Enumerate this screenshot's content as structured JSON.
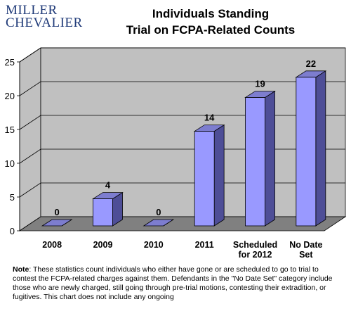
{
  "logo": {
    "line1": "MILLER",
    "line2": "CHEVALIER"
  },
  "note": {
    "label": "Note",
    "text": ": These statistics count individuals who either have gone or are scheduled to go to trial to contest the FCPA-related charges against them. Defendants in the \"No Date Set\" category include those who are newly charged, still going through pre-trial motions, contesting their extradition, or fugitives. This chart does not include any ongoing"
  },
  "colors": {
    "bar_front": "#9999ff",
    "bar_top": "#7d7dcf",
    "bar_side": "#4e4e97",
    "wall": "#c0c0c0",
    "floor": "#808080"
  },
  "chart_data": {
    "type": "bar",
    "title_line1": "Individuals Standing",
    "title_line2": "Trial on FCPA-Related Counts",
    "categories": [
      [
        "2008"
      ],
      [
        "2009"
      ],
      [
        "2010"
      ],
      [
        "2011"
      ],
      [
        "Scheduled",
        "for 2012"
      ],
      [
        "No Date",
        "Set"
      ]
    ],
    "values": [
      0,
      4,
      0,
      14,
      19,
      22
    ],
    "value_labels": [
      "0",
      "4",
      "0",
      "14",
      "19",
      "22"
    ],
    "ylim": [
      0,
      25
    ],
    "yticks": [
      0,
      5,
      10,
      15,
      20,
      25
    ],
    "ytick_labels": [
      "0",
      "5",
      "10",
      "15",
      "20",
      "25"
    ],
    "grid": true,
    "legend": false
  }
}
